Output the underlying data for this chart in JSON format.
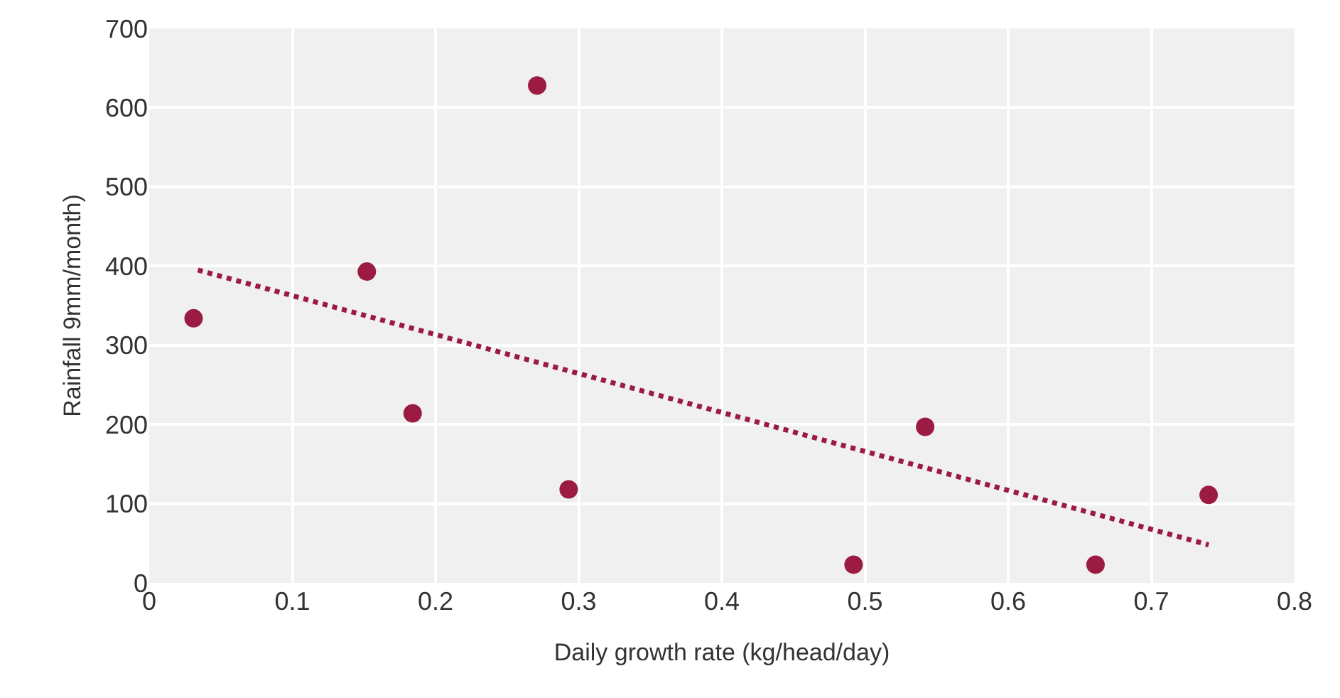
{
  "chart_data": {
    "type": "scatter",
    "xlabel": "Daily growth rate (kg/head/day)",
    "ylabel": "Rainfall 9mm/month)",
    "series": [
      {
        "color": "#9b1b42",
        "marker": "circle",
        "x": [
          0.031,
          0.152,
          0.184,
          0.271,
          0.293,
          0.492,
          0.542,
          0.661,
          0.74
        ],
        "values": [
          334,
          393,
          214,
          628,
          118,
          23,
          197,
          23,
          111
        ]
      },
      {
        "type": "line",
        "color": "#9b1b42",
        "line_style": "dotted",
        "marker": "none",
        "x": [
          0.034,
          0.74
        ],
        "values": [
          395,
          48
        ]
      }
    ],
    "xlim": [
      0,
      0.8
    ],
    "xticks": [
      0,
      0.1,
      0.2,
      0.3,
      0.4,
      0.5,
      0.6,
      0.7,
      0.8
    ],
    "ylim": [
      0,
      700
    ],
    "yticks": [
      0,
      100,
      200,
      300,
      400,
      500,
      600,
      700
    ],
    "grid": true
  }
}
